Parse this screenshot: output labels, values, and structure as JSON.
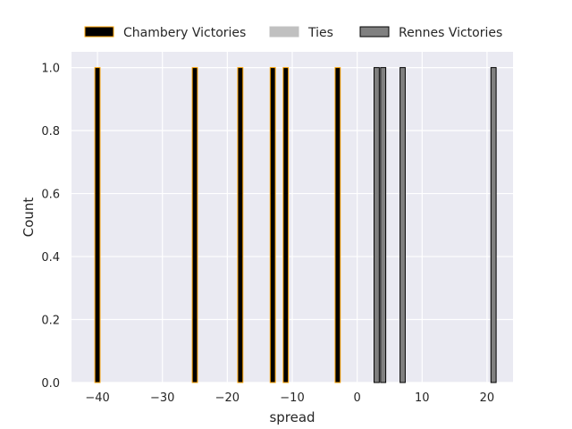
{
  "chart_data": {
    "type": "bar",
    "xlabel": "spread",
    "ylabel": "Count",
    "xlim": [
      -44,
      24
    ],
    "ylim": [
      0,
      1.05
    ],
    "x_ticks": [
      -40,
      -30,
      -20,
      -10,
      0,
      10,
      20
    ],
    "y_ticks": [
      0.0,
      0.2,
      0.4,
      0.6,
      0.8,
      1.0
    ],
    "bin_width": 0.8,
    "grid": true,
    "legend_position": "top, above plot, horizontal",
    "series": [
      {
        "name": "Chambery Victories",
        "fill": "#000000",
        "edge": "#ffa500",
        "x": [
          -40,
          -25,
          -18,
          -13,
          -11,
          -3
        ],
        "values": [
          1,
          1,
          1,
          1,
          1,
          1
        ]
      },
      {
        "name": "Ties",
        "fill": "#c0c0c0",
        "edge": "#c0c0c0",
        "x": [],
        "values": []
      },
      {
        "name": "Rennes Victories",
        "fill": "#808080",
        "edge": "#000000",
        "x": [
          3,
          4,
          7,
          21
        ],
        "values": [
          1,
          1,
          1,
          1
        ]
      }
    ]
  }
}
